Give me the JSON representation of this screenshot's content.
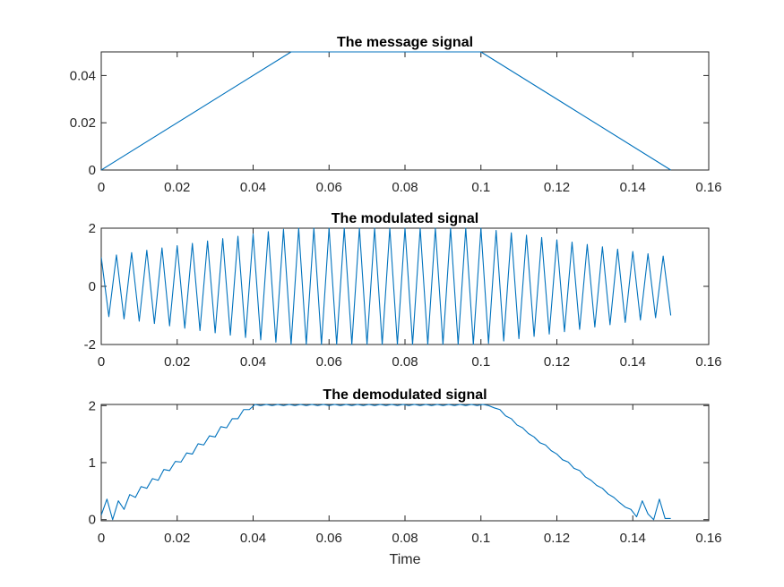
{
  "chart_data": [
    {
      "type": "line",
      "title": "The message signal",
      "xlabel": "",
      "ylabel": "",
      "xlim": [
        0,
        0.16
      ],
      "ylim": [
        0,
        0.05
      ],
      "xticks": [
        "0",
        "0.02",
        "0.04",
        "0.06",
        "0.08",
        "0.1",
        "0.12",
        "0.14",
        "0.16"
      ],
      "yticks": [
        "0",
        "0.02",
        "0.04"
      ],
      "line_color": "#0072BD",
      "series": [
        {
          "x": [
            0,
            0.05,
            0.1,
            0.15
          ],
          "y": [
            0,
            0.05,
            0.05,
            0
          ]
        }
      ]
    },
    {
      "type": "line",
      "title": "The modulated signal",
      "xlabel": "",
      "ylabel": "",
      "xlim": [
        0,
        0.16
      ],
      "ylim": [
        -2,
        2
      ],
      "xticks": [
        "0",
        "0.02",
        "0.04",
        "0.06",
        "0.08",
        "0.1",
        "0.12",
        "0.14",
        "0.16"
      ],
      "yticks": [
        "-2",
        "0",
        "2"
      ],
      "line_color": "#0072BD",
      "series": [
        {
          "x": [
            0,
            0.002,
            0.004,
            0.006,
            0.008,
            0.01,
            0.012,
            0.014,
            0.016,
            0.018,
            0.02,
            0.022,
            0.024,
            0.026,
            0.028,
            0.03,
            0.032,
            0.034,
            0.036,
            0.038,
            0.04,
            0.042,
            0.044,
            0.046,
            0.048,
            0.05,
            0.052,
            0.054,
            0.056,
            0.058,
            0.06,
            0.062,
            0.064,
            0.066,
            0.068,
            0.07,
            0.072,
            0.074,
            0.076,
            0.078,
            0.08,
            0.082,
            0.084,
            0.086,
            0.088,
            0.09,
            0.092,
            0.094,
            0.096,
            0.098,
            0.1,
            0.102,
            0.104,
            0.106,
            0.108,
            0.11,
            0.112,
            0.114,
            0.116,
            0.118,
            0.12,
            0.122,
            0.124,
            0.126,
            0.128,
            0.13,
            0.132,
            0.134,
            0.136,
            0.138,
            0.14,
            0.142,
            0.144,
            0.146,
            0.148,
            0.15
          ],
          "y": [
            1.0,
            -1.04,
            1.08,
            -1.12,
            1.16,
            -1.2,
            1.24,
            -1.28,
            1.32,
            -1.36,
            1.4,
            -1.44,
            1.48,
            -1.52,
            1.56,
            -1.6,
            1.64,
            -1.68,
            1.72,
            -1.76,
            1.8,
            -1.84,
            1.88,
            -1.92,
            1.96,
            -2.0,
            2.0,
            -2.0,
            2.0,
            -2.0,
            2.0,
            -2.0,
            2.0,
            -2.0,
            2.0,
            -2.0,
            2.0,
            -2.0,
            2.0,
            -2.0,
            2.0,
            -2.0,
            2.0,
            -2.0,
            2.0,
            -2.0,
            2.0,
            -2.0,
            2.0,
            -2.0,
            2.0,
            -1.96,
            1.92,
            -1.88,
            1.84,
            -1.8,
            1.76,
            -1.72,
            1.68,
            -1.64,
            1.6,
            -1.56,
            1.52,
            -1.48,
            1.44,
            -1.4,
            1.36,
            -1.32,
            1.28,
            -1.24,
            1.2,
            -1.16,
            1.12,
            -1.08,
            1.04,
            -1.0
          ]
        }
      ]
    },
    {
      "type": "line",
      "title": "The demodulated signal",
      "xlabel": "Time",
      "ylabel": "",
      "xlim": [
        0,
        0.16
      ],
      "ylim": [
        -0.02,
        2.02
      ],
      "xticks": [
        "0",
        "0.02",
        "0.04",
        "0.06",
        "0.08",
        "0.1",
        "0.12",
        "0.14",
        "0.16"
      ],
      "yticks": [
        "0",
        "1",
        "2"
      ],
      "line_color": "#0072BD",
      "series": [
        {
          "x": [
            0,
            0.0015,
            0.003,
            0.0045,
            0.006,
            0.0075,
            0.009,
            0.0105,
            0.012,
            0.0135,
            0.015,
            0.0165,
            0.018,
            0.0195,
            0.021,
            0.0225,
            0.024,
            0.0255,
            0.027,
            0.0285,
            0.03,
            0.0315,
            0.033,
            0.0345,
            0.036,
            0.0375,
            0.039,
            0.0405,
            0.042,
            0.0435,
            0.045,
            0.0465,
            0.048,
            0.0495,
            0.051,
            0.0525,
            0.054,
            0.0555,
            0.057,
            0.0585,
            0.06,
            0.0615,
            0.063,
            0.0645,
            0.066,
            0.0675,
            0.069,
            0.0705,
            0.072,
            0.0735,
            0.075,
            0.0765,
            0.078,
            0.0795,
            0.081,
            0.0825,
            0.084,
            0.0855,
            0.087,
            0.0885,
            0.09,
            0.0915,
            0.093,
            0.0945,
            0.096,
            0.0975,
            0.099,
            0.1005,
            0.102,
            0.1035,
            0.105,
            0.1065,
            0.108,
            0.1095,
            0.111,
            0.1125,
            0.114,
            0.1155,
            0.117,
            0.1185,
            0.12,
            0.1215,
            0.123,
            0.1245,
            0.126,
            0.1275,
            0.129,
            0.1305,
            0.132,
            0.1335,
            0.135,
            0.1365,
            0.138,
            0.1395,
            0.141,
            0.1425,
            0.144,
            0.1455,
            0.147,
            0.1485,
            0.15
          ],
          "y": [
            0.08,
            0.36,
            0.0,
            0.33,
            0.18,
            0.44,
            0.39,
            0.58,
            0.55,
            0.72,
            0.69,
            0.88,
            0.86,
            1.02,
            1.01,
            1.17,
            1.15,
            1.33,
            1.31,
            1.47,
            1.45,
            1.63,
            1.61,
            1.77,
            1.77,
            1.93,
            1.93,
            2.02,
            2.0,
            2.02,
            2.0,
            2.02,
            2.0,
            2.02,
            2.0,
            2.02,
            2.0,
            2.02,
            2.0,
            2.02,
            2.0,
            2.02,
            2.0,
            2.02,
            2.0,
            2.02,
            2.0,
            2.02,
            2.0,
            2.02,
            2.0,
            2.02,
            2.0,
            2.02,
            2.0,
            2.02,
            2.0,
            2.02,
            2.0,
            2.02,
            2.0,
            2.02,
            2.0,
            2.02,
            2.0,
            2.02,
            2.0,
            2.02,
            2.0,
            1.96,
            1.93,
            1.82,
            1.77,
            1.66,
            1.61,
            1.51,
            1.45,
            1.35,
            1.31,
            1.21,
            1.15,
            1.05,
            1.01,
            0.9,
            0.86,
            0.75,
            0.69,
            0.6,
            0.55,
            0.45,
            0.39,
            0.3,
            0.22,
            0.18,
            0.05,
            0.33,
            0.1,
            0.0,
            0.36,
            0.02,
            0.02
          ]
        }
      ]
    }
  ]
}
